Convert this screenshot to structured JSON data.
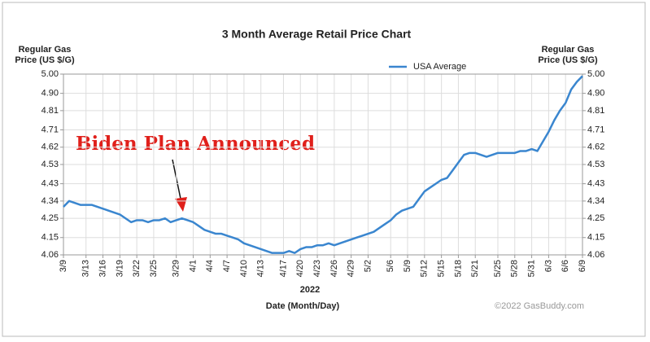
{
  "chart_data": {
    "type": "line",
    "title": "3 Month Average Retail Price Chart",
    "y_label": [
      "Regular Gas",
      "Price (US $/G)"
    ],
    "x_group_label": "2022",
    "x_label": "Date (Month/Day)",
    "annotation": "Biden Plan Announced",
    "watermark": "©2022 GasBuddy.com",
    "grid": true,
    "legend": "top",
    "categories": [
      "3/9",
      null,
      null,
      null,
      "3/13",
      null,
      null,
      "3/16",
      null,
      null,
      "3/19",
      null,
      null,
      "3/22",
      null,
      null,
      "3/25",
      null,
      null,
      null,
      "3/29",
      null,
      null,
      "4/1",
      null,
      null,
      "4/4",
      null,
      null,
      "4/7",
      null,
      null,
      "4/10",
      null,
      null,
      "4/13",
      null,
      null,
      null,
      "4/17",
      null,
      null,
      "4/20",
      null,
      null,
      "4/23",
      null,
      null,
      "4/26",
      null,
      null,
      "4/29",
      null,
      null,
      "5/2",
      null,
      null,
      null,
      "5/6",
      null,
      null,
      "5/9",
      null,
      null,
      "5/12",
      null,
      null,
      "5/15",
      null,
      null,
      "5/18",
      null,
      null,
      "5/21",
      null,
      null,
      null,
      "5/25",
      null,
      null,
      "5/28",
      null,
      null,
      "5/31",
      null,
      null,
      "6/3",
      null,
      null,
      "6/6",
      null,
      null,
      "6/9"
    ],
    "series": [
      {
        "name": "USA Average",
        "color": "#3a86cf",
        "values": [
          4.31,
          4.34,
          4.33,
          4.32,
          4.32,
          4.32,
          4.31,
          4.3,
          4.29,
          4.28,
          4.27,
          4.25,
          4.23,
          4.24,
          4.24,
          4.23,
          4.24,
          4.24,
          4.25,
          4.23,
          4.24,
          4.25,
          4.24,
          4.23,
          4.21,
          4.19,
          4.18,
          4.17,
          4.17,
          4.16,
          4.15,
          4.14,
          4.12,
          4.11,
          4.1,
          4.09,
          4.08,
          4.07,
          4.07,
          4.07,
          4.08,
          4.07,
          4.09,
          4.1,
          4.1,
          4.11,
          4.11,
          4.12,
          4.11,
          4.12,
          4.13,
          4.14,
          4.15,
          4.16,
          4.17,
          4.18,
          4.2,
          4.22,
          4.24,
          4.27,
          4.29,
          4.3,
          4.31,
          4.35,
          4.39,
          4.41,
          4.43,
          4.45,
          4.46,
          4.5,
          4.54,
          4.58,
          4.59,
          4.59,
          4.58,
          4.57,
          4.58,
          4.59,
          4.59,
          4.59,
          4.59,
          4.6,
          4.6,
          4.61,
          4.6,
          4.65,
          4.7,
          4.76,
          4.81,
          4.85,
          4.92,
          4.96,
          4.99
        ]
      }
    ],
    "ylim": [
      4.06,
      5.0
    ],
    "yticks": [
      {
        "value": 5.0,
        "label": "5.00"
      },
      {
        "value": 4.9,
        "label": "4.90"
      },
      4.81,
      4.71,
      4.62,
      4.53,
      4.43,
      4.34,
      4.25,
      4.15,
      4.06
    ]
  }
}
